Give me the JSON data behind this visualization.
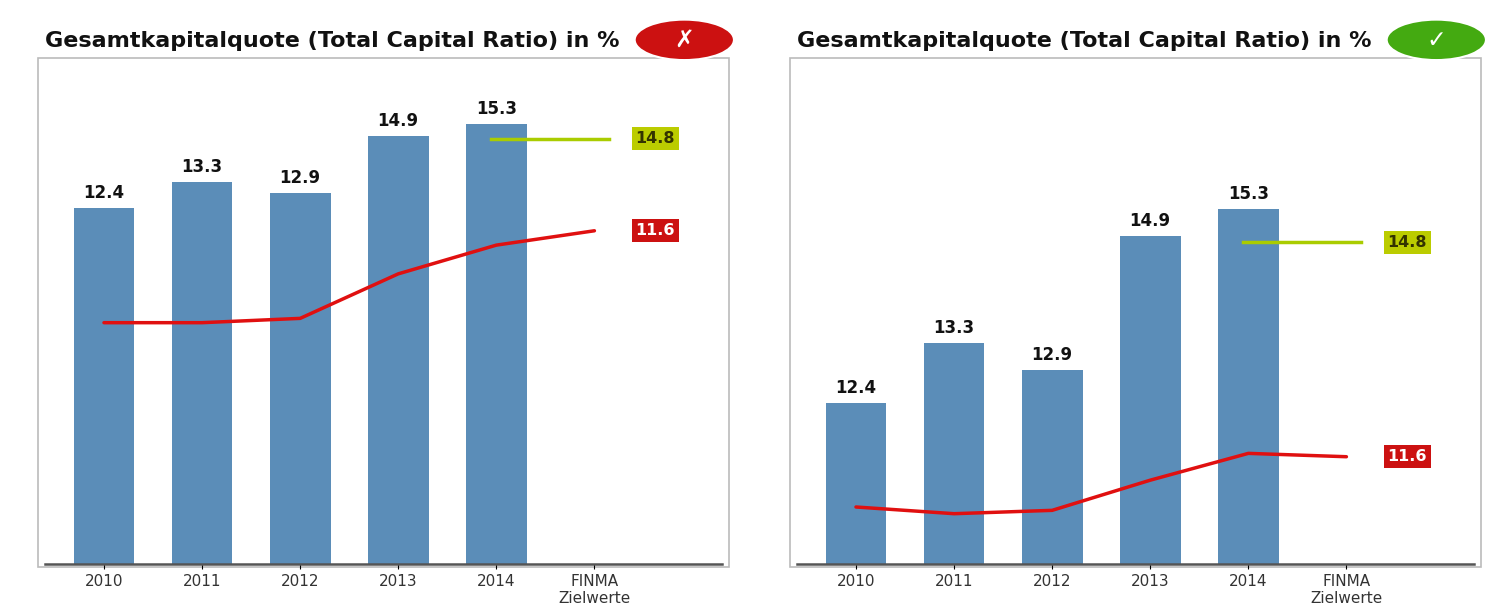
{
  "title": "Gesamtkapitalquote (Total Capital Ratio) in %",
  "categories": [
    "2010",
    "2011",
    "2012",
    "2013",
    "2014",
    "FINMA\nZielwerte"
  ],
  "bar_values": [
    12.4,
    13.3,
    12.9,
    14.9,
    15.3
  ],
  "bar_color": "#5b8db8",
  "bar_labels": [
    "12.4",
    "13.3",
    "12.9",
    "14.9",
    "15.3"
  ],
  "red_line_x": [
    0,
    1,
    2,
    3,
    4,
    5
  ],
  "red_line_left": [
    8.4,
    8.4,
    8.55,
    10.1,
    11.1,
    11.6
  ],
  "red_line_right": [
    10.85,
    10.75,
    10.8,
    11.25,
    11.65,
    11.6
  ],
  "red_line_color": "#e01010",
  "red_label": "11.6",
  "red_bg": "#cc1111",
  "green_line_y": 14.8,
  "green_line_color": "#aacc00",
  "green_label": "14.8",
  "green_bg": "#bbcc00",
  "ylim_left": [
    0,
    17.5
  ],
  "ylim_right": [
    10.0,
    17.5
  ],
  "bg_color": "#ffffff",
  "panel_border": "#bbbbbb",
  "title_fontsize": 16,
  "bar_label_fontsize": 12,
  "tick_fontsize": 11,
  "icon_bad_color": "#cc1111",
  "icon_good_color": "#44aa11"
}
